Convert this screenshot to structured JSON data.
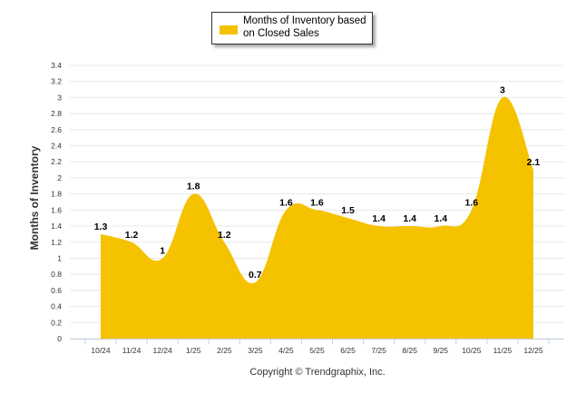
{
  "chart_data": {
    "type": "area",
    "categories": [
      "10/24",
      "11/24",
      "12/24",
      "1/25",
      "2/25",
      "3/25",
      "4/25",
      "5/25",
      "6/25",
      "7/25",
      "8/25",
      "9/25",
      "10/25",
      "11/25",
      "12/25"
    ],
    "series": [
      {
        "name": "Months of Inventory based on Closed Sales",
        "values": [
          1.3,
          1.2,
          1,
          1.8,
          1.2,
          0.7,
          1.6,
          1.6,
          1.5,
          1.4,
          1.4,
          1.4,
          1.6,
          3,
          2.1
        ]
      }
    ],
    "data_labels": [
      "1.3",
      "1.2",
      "1",
      "1.8",
      "1.2",
      "0.7",
      "1.6",
      "1.6",
      "1.5",
      "1.4",
      "1.4",
      "1.4",
      "1.6",
      "3",
      "2.1"
    ],
    "y_ticks": [
      "0",
      "0.2",
      "0.4",
      "0.6",
      "0.8",
      "1",
      "1.2",
      "1.4",
      "1.6",
      "1.8",
      "2",
      "2.2",
      "2.4",
      "2.6",
      "2.8",
      "3",
      "3.2",
      "3.4"
    ],
    "ylim": [
      0,
      3.4
    ],
    "title": "",
    "xlabel": "",
    "ylabel": "Months of Inventory",
    "legend_placement": "top-center",
    "grid": true,
    "credits": "Copyright © Trendgraphix, Inc."
  },
  "colors": {
    "series_fill": "#F5C200",
    "gridline": "#E8E8E8",
    "axis": "#C0D0E0"
  },
  "legend": {
    "label_line1": "Months of Inventory based",
    "label_line2": "on Closed Sales"
  }
}
